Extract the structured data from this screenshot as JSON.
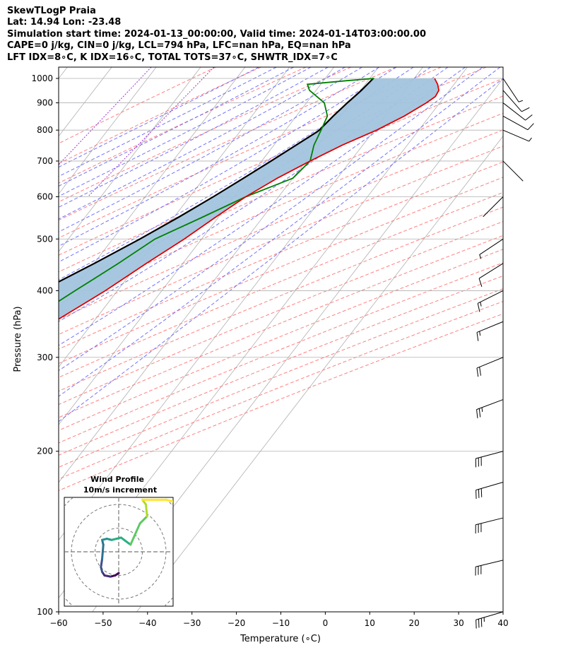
{
  "header": {
    "line1": "SkewTLogP Praia",
    "line2": "Lat: 14.94   Lon: -23.48",
    "line3": "Simulation start time: 2024-01-13_00:00:00, Valid time: 2024-01-14T03:00:00.00",
    "line4": "CAPE=0 j/kg, CIN=0 j/kg, LCL=794 hPa, LFC=nan hPa, EQ=nan hPa",
    "line5": "LFT IDX=8∘C, K IDX=16∘C, TOTAL TOTS=37∘C, SHWTR_IDX=7∘C"
  },
  "colors": {
    "temperature": "#e00000",
    "dewpoint": "#008000",
    "parcel": "#000000",
    "shade": "#a2c4de",
    "isotherm": "#b0b0b0",
    "dry_adiabat": "#ff6a6a",
    "moist_adiabat": "#5a5aff",
    "mixing_ratio": "#9933cc"
  },
  "chart_data": {
    "type": "line",
    "title": "SkewTLogP Praia",
    "xlabel": "Temperature (∘C)",
    "ylabel": "Pressure (hPa)",
    "xlim": [
      -60,
      40
    ],
    "ylim": [
      1050,
      100
    ],
    "y_scale": "log",
    "x_ticks": [
      -60,
      -50,
      -40,
      -30,
      -20,
      -10,
      0,
      10,
      20,
      30,
      40
    ],
    "x_tick_labels": [
      "−60",
      "−50",
      "−40",
      "−30",
      "−20",
      "−10",
      "0",
      "10",
      "20",
      "30",
      "40"
    ],
    "y_ticks": [
      1000,
      900,
      800,
      700,
      600,
      500,
      400,
      300,
      200,
      100
    ],
    "y_tick_labels": [
      "1000",
      "900",
      "800",
      "700",
      "600",
      "500",
      "400",
      "300",
      "200",
      "100"
    ],
    "series": [
      {
        "name": "Temperature",
        "pressure": [
          1000,
          975,
          950,
          925,
          900,
          850,
          800,
          750,
          700,
          650,
          600,
          550,
          500,
          450,
          400,
          350,
          300,
          275,
          250,
          225,
          200,
          180,
          175,
          160,
          150,
          140,
          130,
          120,
          110,
          100
        ],
        "values": [
          24.6,
          26.3,
          27.6,
          27.9,
          27.0,
          24.3,
          20.5,
          15.4,
          10.9,
          6.5,
          2.6,
          -0.6,
          -3.9,
          -8.2,
          -12.7,
          -18.8,
          -25.4,
          -29.5,
          -34.3,
          -39.8,
          -46.1,
          -51.7,
          -53.5,
          -57.6,
          -60.2,
          -63.4,
          -67.0,
          -71.4,
          -75.5,
          -78.8
        ]
      },
      {
        "name": "Dewpoint",
        "pressure": [
          1000,
          990,
          975,
          950,
          900,
          850,
          800,
          750,
          700,
          650,
          600,
          550,
          500,
          450,
          400,
          350,
          320,
          300,
          275,
          250,
          225,
          200,
          190,
          180,
          160,
          150,
          140,
          130,
          120,
          110,
          100
        ],
        "values": [
          11.0,
          5.0,
          -3.0,
          -1.5,
          4.0,
          7.0,
          8.0,
          9.0,
          10.9,
          10.0,
          2.6,
          -3.5,
          -10.5,
          -14.5,
          -19.5,
          -25.0,
          -31.0,
          -41.0,
          -46.0,
          -53.0,
          -58.5,
          -60.8,
          -63.6,
          -66.7,
          -74.0,
          -78.1,
          -81.8,
          -86.4,
          -90.9,
          -94.9,
          -98.7
        ]
      },
      {
        "name": "Parcel Profile",
        "pressure": [
          1000,
          950,
          900,
          850,
          800,
          794,
          750,
          700,
          650,
          600,
          550,
          500,
          450,
          400,
          350,
          300,
          250,
          200,
          150,
          100
        ],
        "values": [
          10.8,
          10.2,
          9.2,
          8.3,
          7.6,
          7.4,
          5.0,
          2.1,
          -1.1,
          -4.7,
          -8.9,
          -13.9,
          -19.9,
          -27.1,
          -35.7,
          -45.8,
          -57.6,
          -71.6,
          -88.9,
          -113.1
        ]
      }
    ],
    "wind_barbs": [
      {
        "pressure": 1000,
        "u": -4,
        "v": 6,
        "speed_kt": 6
      },
      {
        "pressure": 950,
        "u": -7,
        "v": 8,
        "speed_kt": 10
      },
      {
        "pressure": 900,
        "u": -9,
        "v": 7,
        "speed_kt": 12
      },
      {
        "pressure": 850,
        "u": -9,
        "v": 5,
        "speed_kt": 11
      },
      {
        "pressure": 800,
        "u": -7,
        "v": 3,
        "speed_kt": 8
      },
      {
        "pressure": 700,
        "u": -2,
        "v": 2,
        "speed_kt": 3
      },
      {
        "pressure": 600,
        "u": 1,
        "v": 1,
        "speed_kt": 2
      },
      {
        "pressure": 500,
        "u": 6,
        "v": 4,
        "speed_kt": 7
      },
      {
        "pressure": 450,
        "u": 8,
        "v": 5,
        "speed_kt": 10
      },
      {
        "pressure": 400,
        "u": 14,
        "v": 7,
        "speed_kt": 15
      },
      {
        "pressure": 350,
        "u": 17,
        "v": 7,
        "speed_kt": 19
      },
      {
        "pressure": 300,
        "u": 22,
        "v": 9,
        "speed_kt": 24
      },
      {
        "pressure": 250,
        "u": 24,
        "v": 9,
        "speed_kt": 26
      },
      {
        "pressure": 200,
        "u": 30,
        "v": 8,
        "speed_kt": 31
      },
      {
        "pressure": 175,
        "u": 31,
        "v": 9,
        "speed_kt": 32
      },
      {
        "pressure": 150,
        "u": 32,
        "v": 8,
        "speed_kt": 33
      },
      {
        "pressure": 125,
        "u": 33,
        "v": 8,
        "speed_kt": 34
      },
      {
        "pressure": 100,
        "u": 34,
        "v": 10,
        "speed_kt": 35
      }
    ],
    "hodograph": {
      "title": "Wind Profile",
      "subtitle": "10m/s increment",
      "rings_ms": [
        10,
        20,
        30
      ],
      "xlim": [
        -23,
        23
      ],
      "ylim": [
        -23,
        23
      ],
      "u": [
        0.0,
        -1.5,
        -3.5,
        -6.0,
        -7.0,
        -7.5,
        -7.0,
        -6.5,
        -7.0,
        -5.0,
        -3.0,
        1.0,
        5.0,
        9.0,
        12.0,
        11.5,
        10.0,
        20.0,
        28.0
      ],
      "v": [
        -9.0,
        -10.0,
        -10.5,
        -10.0,
        -8.5,
        -6.5,
        -3.0,
        3.0,
        5.0,
        5.5,
        5.0,
        6.0,
        3.0,
        12.0,
        15.0,
        20.0,
        22.0,
        22.0,
        20.0
      ]
    }
  }
}
